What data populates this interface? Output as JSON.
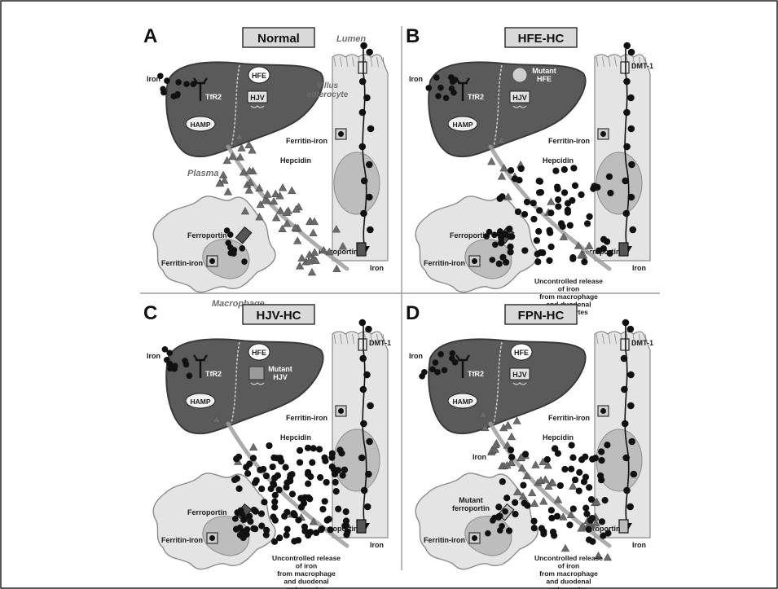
{
  "panels": [
    {
      "letter": "A",
      "title": "Normal",
      "labels": {
        "iron": "Iron",
        "tfr2": "TfR2",
        "hfe": "HFE",
        "hjv": "HJV",
        "hamp": "HAMP",
        "ferritin_enterocyte": "Ferritin-iron",
        "ferritin_macrophage": "Ferritin-iron",
        "dmt1": "",
        "hepcidin": "Hepcidin",
        "ferroportin_macrophage": "Ferroportin",
        "ferroportin_enterocyte": "Ferroportin",
        "iron_out": "Iron",
        "lumen": "Lumen",
        "villus": "Villus enterocyte",
        "plasma": "Plasma",
        "macrophage": "Macrophage",
        "mutant": "",
        "uncontrolled": ""
      }
    },
    {
      "letter": "B",
      "title": "HFE-HC",
      "labels": {
        "iron": "Iron",
        "tfr2": "TfR2",
        "hfe": "",
        "hjv": "HJV",
        "hamp": "HAMP",
        "ferritin_enterocyte": "Ferritin-iron",
        "ferritin_macrophage": "Ferritin-iron",
        "dmt1": "DMT-1",
        "hepcidin": "Hepcidin",
        "ferroportin_macrophage": "Ferroportin",
        "ferroportin_enterocyte": "Ferroportin",
        "iron_out": "Iron",
        "lumen": "",
        "villus": "",
        "plasma": "",
        "macrophage": "",
        "mutant": "Mutant HFE",
        "uncontrolled": "Uncontrolled release of iron from macrophage and duodenal enterocytes"
      }
    },
    {
      "letter": "C",
      "title": "HJV-HC",
      "labels": {
        "iron": "Iron",
        "tfr2": "TfR2",
        "hfe": "HFE",
        "hjv": "",
        "hamp": "HAMP",
        "ferritin_enterocyte": "Ferritin-iron",
        "ferritin_macrophage": "Ferritin-iron",
        "dmt1": "DMT-1",
        "hepcidin": "Hepcidin",
        "ferroportin_macrophage": "Ferroportin",
        "ferroportin_enterocyte": "Ferroportin",
        "iron_out": "Iron",
        "lumen": "",
        "villus": "",
        "plasma": "",
        "macrophage": "",
        "mutant": "Mutant HJV",
        "uncontrolled": "Uncontrolled release of iron from macrophage and duodenal enterocytes"
      }
    },
    {
      "letter": "D",
      "title": "FPN-HC",
      "labels": {
        "iron": "Iron",
        "tfr2": "TfR2",
        "hfe": "HFE",
        "hjv": "HJV",
        "hamp": "HAMP",
        "ferritin_enterocyte": "Ferritin-iron",
        "ferritin_macrophage": "Ferritin-iron",
        "dmt1": "DMT-1",
        "hepcidin": "Hepcidin",
        "ferroportin_macrophage": "",
        "ferroportin_enterocyte": "Ferroportin",
        "iron_out": "Iron",
        "iron_mid": "Iron",
        "lumen": "",
        "villus": "",
        "plasma": "",
        "macrophage": "",
        "mutant": "Mutant ferroportin",
        "uncontrolled": "Uncontrolled release of iron from macrophage and duodenal enterocytes"
      }
    }
  ],
  "colors": {
    "liver": "#5a5a5a",
    "liver_dark": "#3a3a3a",
    "cell_light": "#e4e4e4",
    "cell_border": "#8a8a8a",
    "nucleus": "#bdbdbd",
    "hepcidin": "#6b6b6b",
    "iron": "#111111",
    "stream": "#9e9e9e"
  }
}
